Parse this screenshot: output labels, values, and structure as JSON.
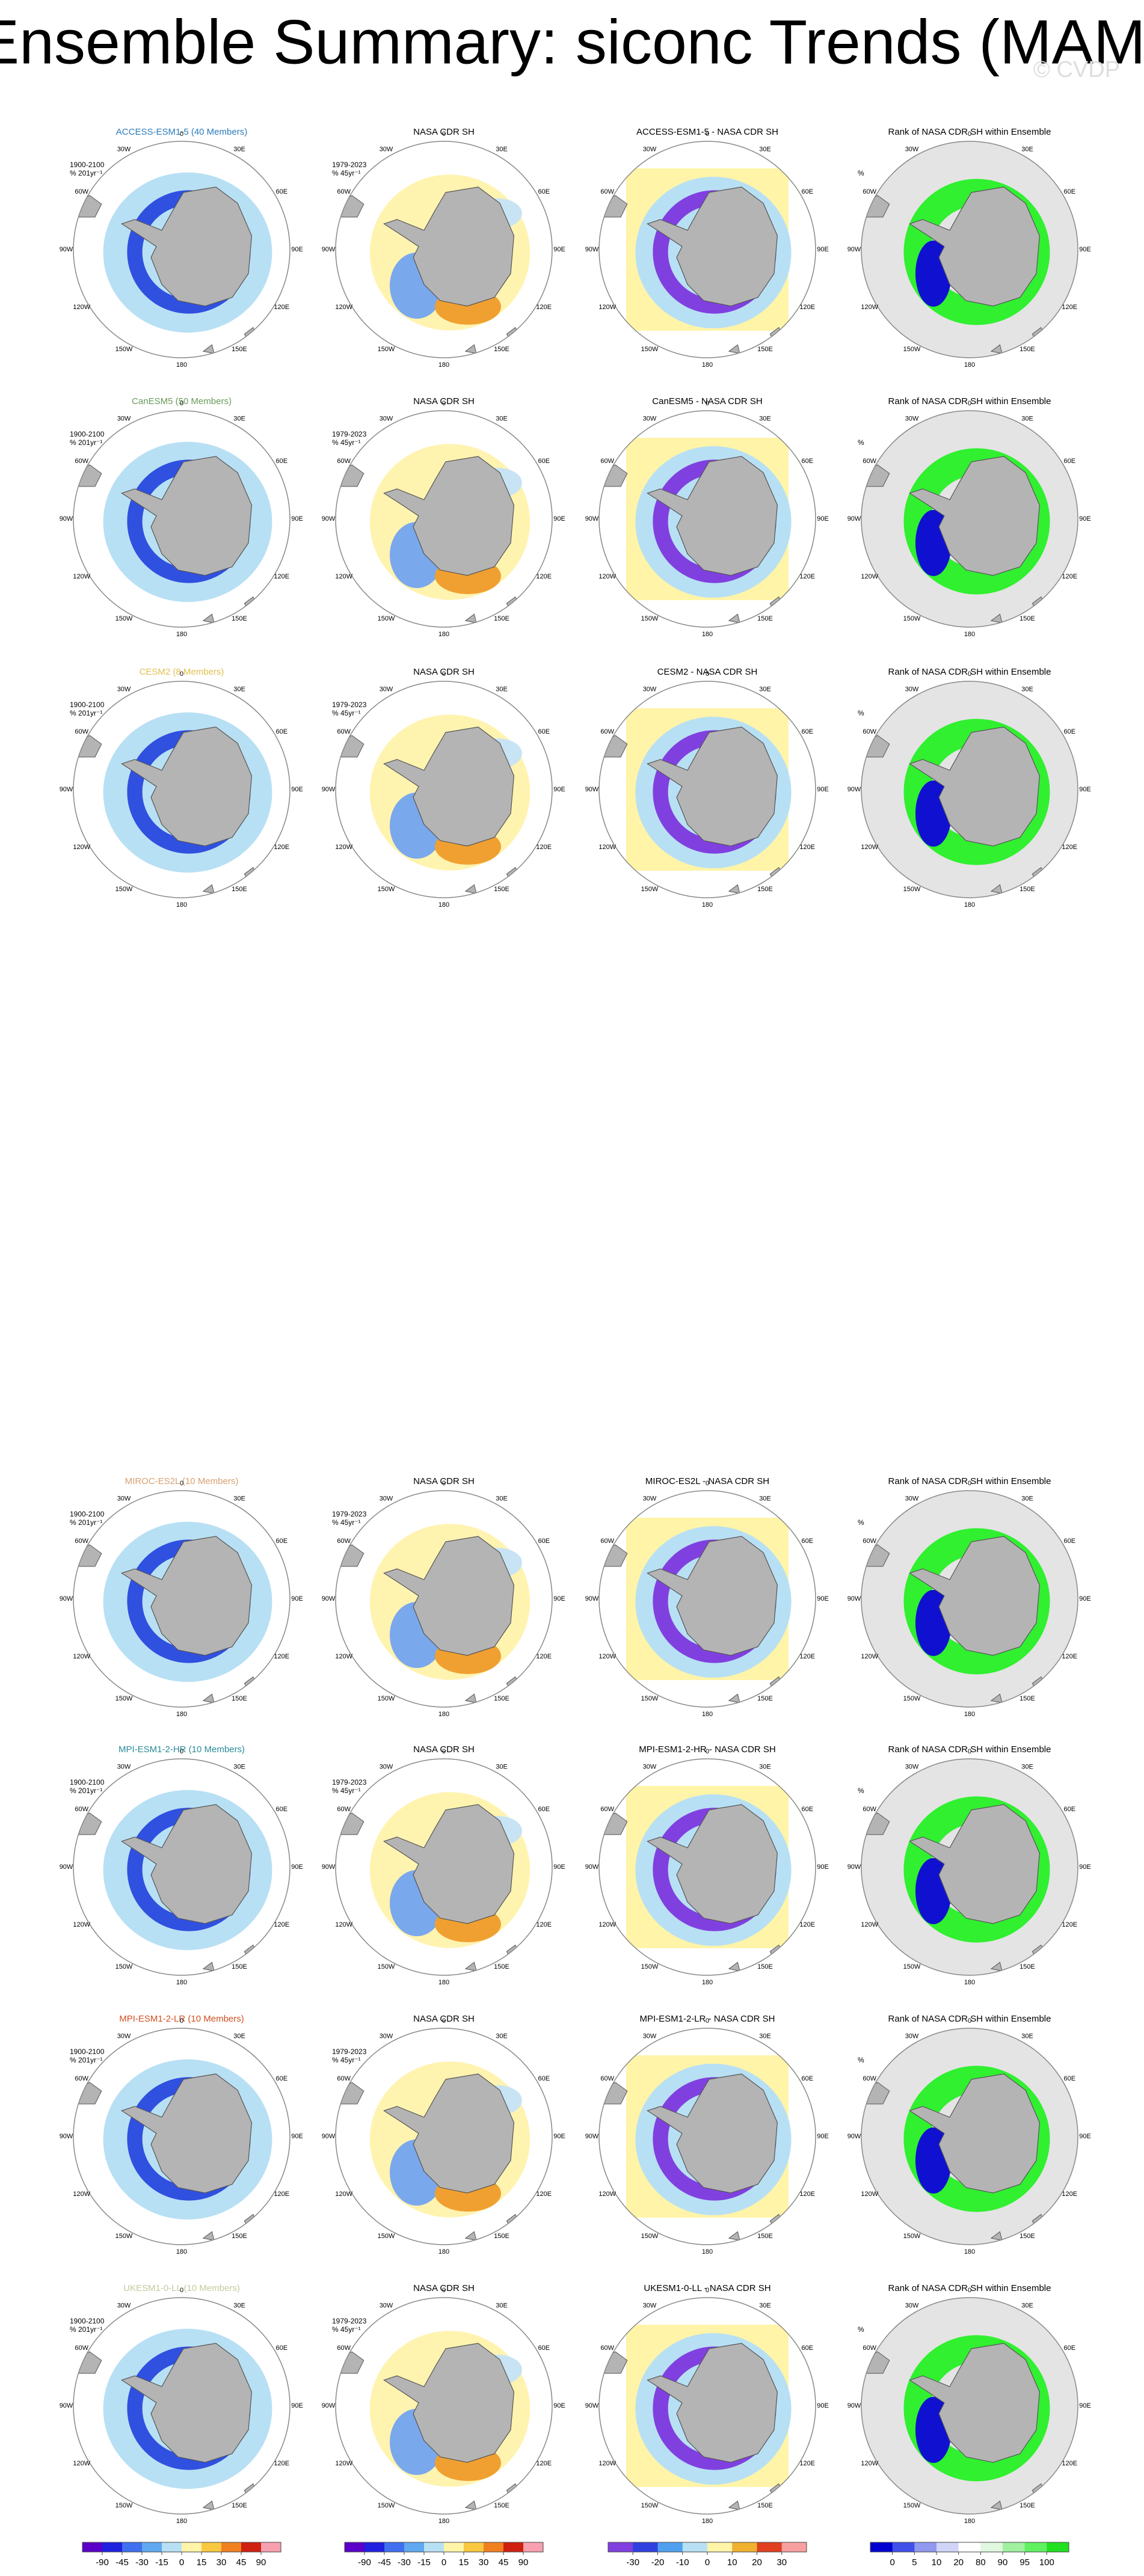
{
  "title": "Ensemble Summary: siconc Trends (MAM)",
  "watermark": "© CVDP",
  "observation_title": "NASA CDR SH",
  "rank_title": "Rank of NASA CDR SH within Ensemble",
  "model_period": "1900-2100",
  "model_units": "% 201yr⁻¹",
  "obs_period": "1979-2023",
  "obs_units": "% 45yr⁻¹",
  "rank_units": "%",
  "longitudes": [
    "0",
    "30E",
    "60E",
    "90E",
    "120E",
    "150E",
    "180",
    "150W",
    "120W",
    "90W",
    "60W",
    "30W"
  ],
  "rows": [
    {
      "model_title": "ACCESS-ESM1-5 (40 Members)",
      "model_color": "#2b7bba",
      "difference_title": "ACCESS-ESM1-5 - NASA CDR SH"
    },
    {
      "model_title": "CanESM5 (50 Members)",
      "model_color": "#6a9a5a",
      "difference_title": "CanESM5 - NASA CDR SH"
    },
    {
      "model_title": "CESM2 (8 Members)",
      "model_color": "#e0c050",
      "difference_title": "CESM2 - NASA CDR SH"
    },
    {
      "model_title": "MIROC-ES2L (10 Members)",
      "model_color": "#d8a070",
      "difference_title": "MIROC-ES2L - NASA CDR SH"
    },
    {
      "model_title": "MPI-ESM1-2-HR (10 Members)",
      "model_color": "#2a8a9a",
      "difference_title": "MPI-ESM1-2-HR - NASA CDR SH"
    },
    {
      "model_title": "MPI-ESM1-2-LR (10 Members)",
      "model_color": "#d05020",
      "difference_title": "MPI-ESM1-2-LR - NASA CDR SH"
    },
    {
      "model_title": "UKESM1-0-LL (10 Members)",
      "model_color": "#c8c8a0",
      "difference_title": "UKESM1-0-LL - NASA CDR SH"
    }
  ],
  "colorbars": [
    {
      "ticks": [
        -90,
        -45,
        -30,
        -15,
        0,
        15,
        30,
        45,
        90
      ],
      "colors": [
        "#5a00c8",
        "#2020e0",
        "#4070f0",
        "#60a8f0",
        "#b8e0f4",
        "#fff4a8",
        "#f8c840",
        "#f08020",
        "#d02010",
        "#f8a0b0"
      ]
    },
    {
      "ticks": [
        -90,
        -45,
        -30,
        -15,
        0,
        15,
        30,
        45,
        90
      ],
      "colors": [
        "#5a00c8",
        "#2020e0",
        "#4070f0",
        "#60a8f0",
        "#b8e0f4",
        "#fff4a8",
        "#f8c840",
        "#f08020",
        "#d02010",
        "#f8a0b0"
      ]
    },
    {
      "ticks": [
        -30,
        -20,
        -10,
        0,
        10,
        20,
        30
      ],
      "colors": [
        "#8040e0",
        "#3040e0",
        "#50a0f0",
        "#b8e0f4",
        "#fff4a8",
        "#f0b030",
        "#e04020",
        "#f8a0a0"
      ]
    },
    {
      "ticks": [
        0,
        5,
        10,
        20,
        80,
        90,
        95,
        100
      ],
      "colors": [
        "#0000d0",
        "#4050e8",
        "#9098f0",
        "#d0d4f8",
        "#ffffff",
        "#e0f8e0",
        "#a0f0a0",
        "#60f060",
        "#20e020"
      ]
    }
  ]
}
